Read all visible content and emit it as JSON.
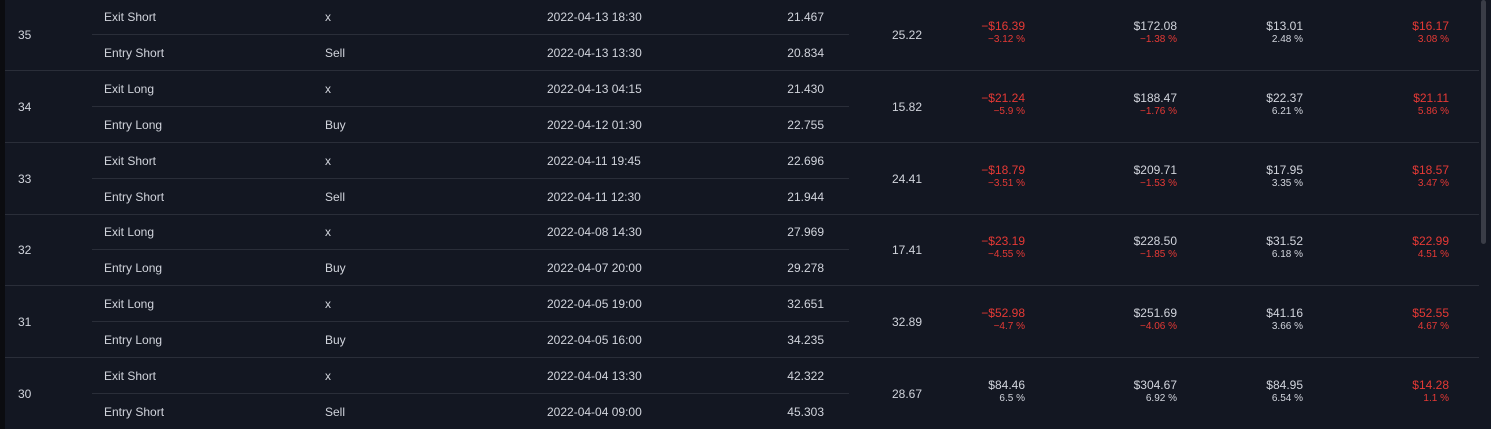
{
  "colors": {
    "background": "#131722",
    "text": "#d1d4dc",
    "negative": "#e53935",
    "separator": "#2a2e39"
  },
  "trades": [
    {
      "number": "35",
      "exit": {
        "type": "Exit Short",
        "signal": "x",
        "date": "2022-04-13 18:30",
        "price": "21.467"
      },
      "entry": {
        "type": "Entry Short",
        "signal": "Sell",
        "date": "2022-04-13 13:30",
        "price": "20.834"
      },
      "contracts": "25.22",
      "profit": {
        "value": "−$16.39",
        "percent": "−3.12 %",
        "negative": true
      },
      "cum_profit": {
        "value": "$172.08",
        "percent": "−1.38 %",
        "negative": false,
        "percent_negative": true
      },
      "run_up": {
        "value": "$13.01",
        "percent": "2.48 %"
      },
      "drawdown": {
        "value": "$16.17",
        "percent": "3.08 %"
      }
    },
    {
      "number": "34",
      "exit": {
        "type": "Exit Long",
        "signal": "x",
        "date": "2022-04-13 04:15",
        "price": "21.430"
      },
      "entry": {
        "type": "Entry Long",
        "signal": "Buy",
        "date": "2022-04-12 01:30",
        "price": "22.755"
      },
      "contracts": "15.82",
      "profit": {
        "value": "−$21.24",
        "percent": "−5.9 %",
        "negative": true
      },
      "cum_profit": {
        "value": "$188.47",
        "percent": "−1.76 %",
        "negative": false,
        "percent_negative": true
      },
      "run_up": {
        "value": "$22.37",
        "percent": "6.21 %"
      },
      "drawdown": {
        "value": "$21.11",
        "percent": "5.86 %"
      }
    },
    {
      "number": "33",
      "exit": {
        "type": "Exit Short",
        "signal": "x",
        "date": "2022-04-11 19:45",
        "price": "22.696"
      },
      "entry": {
        "type": "Entry Short",
        "signal": "Sell",
        "date": "2022-04-11 12:30",
        "price": "21.944"
      },
      "contracts": "24.41",
      "profit": {
        "value": "−$18.79",
        "percent": "−3.51 %",
        "negative": true
      },
      "cum_profit": {
        "value": "$209.71",
        "percent": "−1.53 %",
        "negative": false,
        "percent_negative": true
      },
      "run_up": {
        "value": "$17.95",
        "percent": "3.35 %"
      },
      "drawdown": {
        "value": "$18.57",
        "percent": "3.47 %"
      }
    },
    {
      "number": "32",
      "exit": {
        "type": "Exit Long",
        "signal": "x",
        "date": "2022-04-08 14:30",
        "price": "27.969"
      },
      "entry": {
        "type": "Entry Long",
        "signal": "Buy",
        "date": "2022-04-07 20:00",
        "price": "29.278"
      },
      "contracts": "17.41",
      "profit": {
        "value": "−$23.19",
        "percent": "−4.55 %",
        "negative": true
      },
      "cum_profit": {
        "value": "$228.50",
        "percent": "−1.85 %",
        "negative": false,
        "percent_negative": true
      },
      "run_up": {
        "value": "$31.52",
        "percent": "6.18 %"
      },
      "drawdown": {
        "value": "$22.99",
        "percent": "4.51 %"
      }
    },
    {
      "number": "31",
      "exit": {
        "type": "Exit Long",
        "signal": "x",
        "date": "2022-04-05 19:00",
        "price": "32.651"
      },
      "entry": {
        "type": "Entry Long",
        "signal": "Buy",
        "date": "2022-04-05 16:00",
        "price": "34.235"
      },
      "contracts": "32.89",
      "profit": {
        "value": "−$52.98",
        "percent": "−4.7 %",
        "negative": true
      },
      "cum_profit": {
        "value": "$251.69",
        "percent": "−4.06 %",
        "negative": false,
        "percent_negative": true
      },
      "run_up": {
        "value": "$41.16",
        "percent": "3.66 %"
      },
      "drawdown": {
        "value": "$52.55",
        "percent": "4.67 %"
      }
    },
    {
      "number": "30",
      "exit": {
        "type": "Exit Short",
        "signal": "x",
        "date": "2022-04-04 13:30",
        "price": "42.322"
      },
      "entry": {
        "type": "Entry Short",
        "signal": "Sell",
        "date": "2022-04-04 09:00",
        "price": "45.303"
      },
      "contracts": "28.67",
      "profit": {
        "value": "$84.46",
        "percent": "6.5 %",
        "negative": false
      },
      "cum_profit": {
        "value": "$304.67",
        "percent": "6.92 %",
        "negative": false,
        "percent_negative": false
      },
      "run_up": {
        "value": "$84.95",
        "percent": "6.54 %"
      },
      "drawdown": {
        "value": "$14.28",
        "percent": "1.1 %"
      }
    }
  ]
}
